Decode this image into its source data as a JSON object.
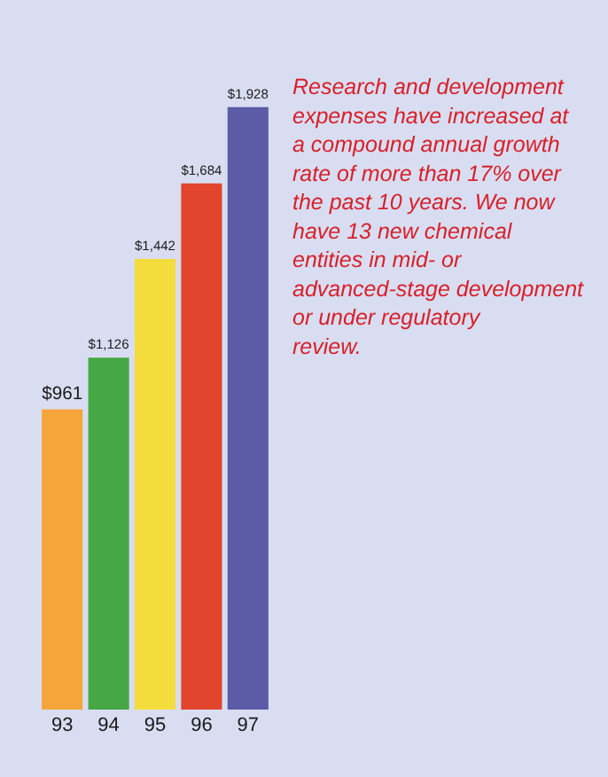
{
  "chart_data": {
    "type": "bar",
    "categories": [
      "93",
      "94",
      "95",
      "96",
      "97"
    ],
    "values": [
      961,
      1126,
      1442,
      1684,
      1928
    ],
    "colors": [
      "#f5a53a",
      "#45a845",
      "#f3dc3c",
      "#e2452e",
      "#5c5ca6"
    ],
    "value_labels": [
      "$961",
      "$1,126",
      "$1,442",
      "$1,684",
      "$1,928"
    ],
    "annotations": [
      "Research and development expenses have increased at a compound annual growth rate of more than 17% over the past 10 years. We now have 13 new chemical entities in mid- or advanced-stage development or under regulatory review."
    ]
  }
}
